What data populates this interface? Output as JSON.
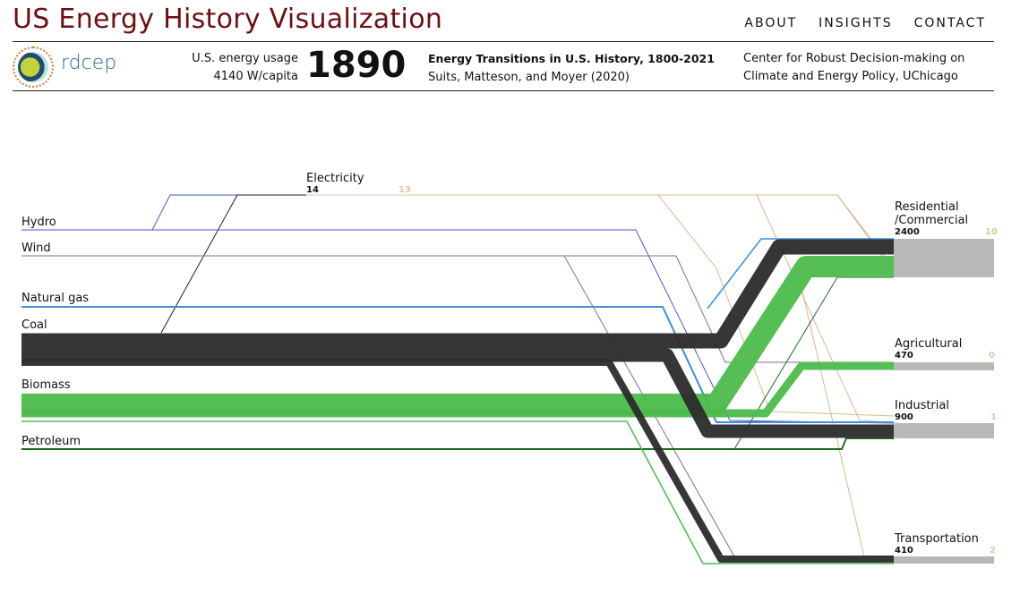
{
  "header": {
    "title": "US Energy History Visualization",
    "nav": [
      "ABOUT",
      "INSIGHTS",
      "CONTACT"
    ],
    "logo_text": "rdcep",
    "usage_label": "U.S. energy usage",
    "usage_value": "4140 W/capita",
    "year": "1890",
    "source_title": "Energy Transitions in U.S. History, 1800-2021",
    "source_authors": "Suits, Matteson, and Moyer (2020)",
    "org_line1": "Center for Robust Decision-making on",
    "org_line2": "Climate and Energy Policy, UChicago"
  },
  "chart_data": {
    "type": "sankey",
    "sources": [
      {
        "name": "Hydro",
        "color": "#4a5bd0"
      },
      {
        "name": "Wind",
        "color": "#8a6a9a"
      },
      {
        "name": "Natural gas",
        "color": "#3d8fdc"
      },
      {
        "name": "Coal",
        "color": "#2b2b2b"
      },
      {
        "name": "Biomass",
        "color": "#4cbb4c"
      },
      {
        "name": "Petroleum",
        "color": "#1e6e1e"
      }
    ],
    "electricity": {
      "name": "Electricity",
      "value": "14",
      "loss": "13",
      "color": "#d8b890"
    },
    "sectors": [
      {
        "name": "Residential/Commercial",
        "line1": "Residential",
        "line2": "/Commercial",
        "value": "2400",
        "loss": "10"
      },
      {
        "name": "Agricultural",
        "value": "470",
        "loss": "0"
      },
      {
        "name": "Industrial",
        "value": "900",
        "loss": "1"
      },
      {
        "name": "Transportation",
        "value": "410",
        "loss": "2"
      }
    ]
  }
}
